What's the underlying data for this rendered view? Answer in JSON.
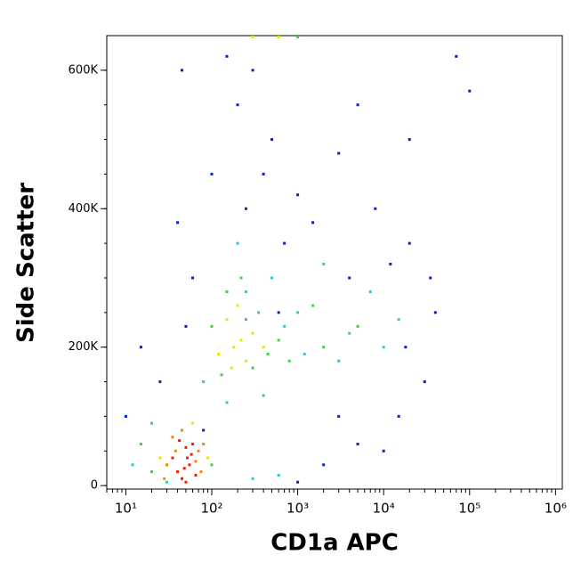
{
  "chart_data": {
    "type": "scatter",
    "x_label": "CD1a APC",
    "y_label": "Side Scatter",
    "xscale": "log",
    "xlim": [
      6,
      1200000
    ],
    "ylim": [
      -5000,
      650000
    ],
    "xticks": [
      {
        "value": 10,
        "label": "10¹"
      },
      {
        "value": 100,
        "label": "10²"
      },
      {
        "value": 1000,
        "label": "10³"
      },
      {
        "value": 10000,
        "label": "10⁴"
      },
      {
        "value": 100000,
        "label": "10⁵"
      },
      {
        "value": 1000000,
        "label": "10⁶"
      }
    ],
    "yticks": [
      0,
      {
        "value": 200000,
        "label": "200K"
      },
      {
        "value": 400000,
        "label": "400K"
      },
      {
        "value": 600000,
        "label": "600K"
      }
    ],
    "series": [
      {
        "color": "#0a1ec8",
        "x": [
          40,
          60,
          100,
          200,
          500,
          1000,
          3000,
          8000,
          20000,
          40000,
          30000,
          15000,
          5000,
          2000,
          1000,
          300,
          150,
          100000,
          45,
          700,
          5000,
          20000,
          10,
          15,
          25,
          50,
          80,
          3000,
          10000,
          400,
          12000,
          35000,
          70000,
          250,
          600,
          1500,
          4000,
          18000
        ],
        "y": [
          380000,
          300000,
          450000,
          550000,
          500000,
          420000,
          480000,
          400000,
          350000,
          250000,
          150000,
          100000,
          60000,
          30000,
          5000,
          600000,
          620000,
          570000,
          600000,
          350000,
          550000,
          500000,
          100000,
          200000,
          150000,
          230000,
          80000,
          100000,
          50000,
          450000,
          320000,
          300000,
          620000,
          400000,
          250000,
          380000,
          300000,
          200000
        ]
      },
      {
        "color": "#30c8d0",
        "x": [
          80,
          1000,
          3000,
          500,
          10000,
          7000,
          200,
          400,
          12,
          20,
          150,
          2000,
          15000,
          30,
          300,
          600,
          700,
          4000,
          250,
          1200
        ],
        "y": [
          150000,
          250000,
          180000,
          300000,
          200000,
          280000,
          350000,
          130000,
          30000,
          90000,
          120000,
          320000,
          240000,
          5000,
          10000,
          15000,
          230000,
          220000,
          280000,
          190000
        ]
      },
      {
        "color": "#40d040",
        "x": [
          100,
          350,
          220,
          600,
          130,
          20,
          100,
          2000,
          5000,
          150,
          800,
          1500,
          1000,
          15,
          300,
          250,
          450
        ],
        "y": [
          230000,
          250000,
          300000,
          210000,
          160000,
          20000,
          30000,
          200000,
          230000,
          280000,
          180000,
          260000,
          648000,
          60000,
          170000,
          240000,
          190000
        ]
      },
      {
        "color": "#e8e800",
        "x": [
          180,
          250,
          150,
          300,
          200,
          120,
          400,
          25,
          90,
          60,
          300,
          600,
          220,
          170
        ],
        "y": [
          200000,
          180000,
          240000,
          220000,
          260000,
          190000,
          200000,
          40000,
          40000,
          90000,
          648000,
          648000,
          210000,
          170000
        ]
      },
      {
        "color": "#f08c00",
        "x": [
          30,
          70,
          35,
          75,
          45,
          28,
          80,
          38,
          65
        ],
        "y": [
          30000,
          50000,
          70000,
          20000,
          80000,
          10000,
          60000,
          50000,
          35000
        ]
      },
      {
        "color": "#e8200a",
        "x": [
          40,
          50,
          55,
          45,
          60,
          35,
          50,
          65,
          42,
          58,
          48,
          52
        ],
        "y": [
          20000,
          55000,
          30000,
          10000,
          60000,
          40000,
          5000,
          15000,
          65000,
          45000,
          25000,
          40000
        ]
      }
    ]
  }
}
